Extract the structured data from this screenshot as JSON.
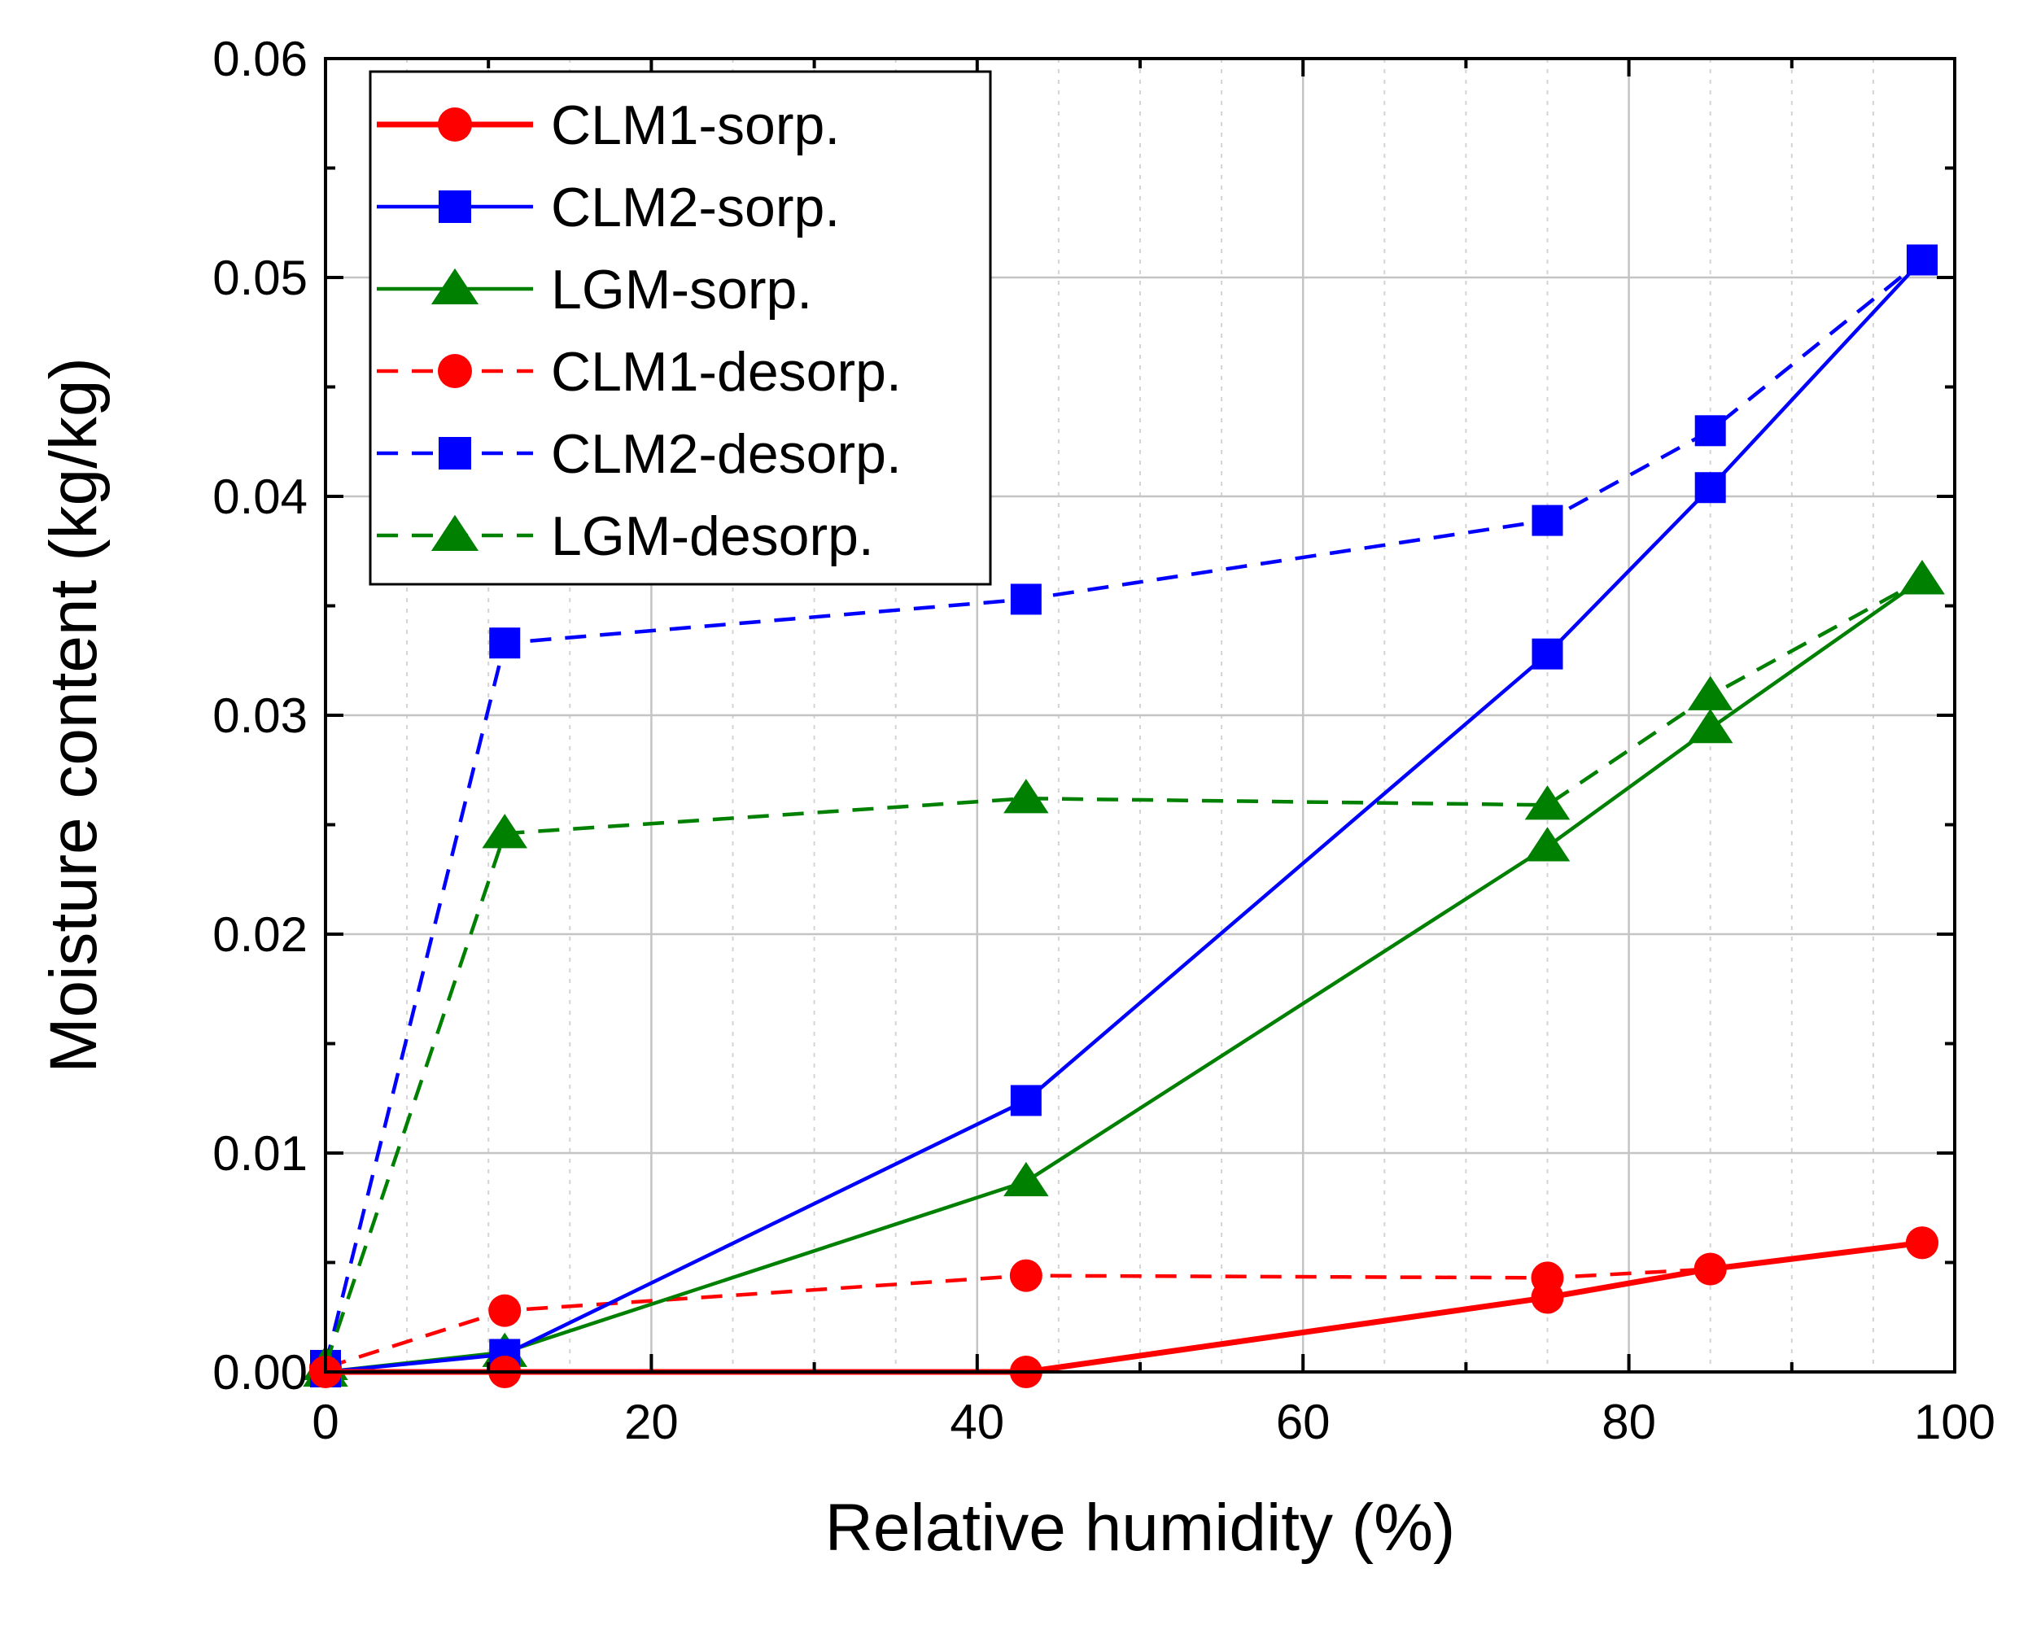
{
  "chart_data": {
    "type": "line",
    "title": "",
    "xlabel": "Relative humidity (%)",
    "ylabel": "Moisture content (kg/kg)",
    "xlim": [
      0,
      100
    ],
    "ylim": [
      0,
      0.06
    ],
    "xticks": [
      0,
      20,
      40,
      60,
      80,
      100
    ],
    "xtick_labels": [
      "0",
      "20",
      "40",
      "60",
      "80",
      "100"
    ],
    "yticks": [
      0,
      0.01,
      0.02,
      0.03,
      0.04,
      0.05,
      0.06
    ],
    "ytick_labels": [
      "0.00",
      "0.01",
      "0.02",
      "0.03",
      "0.04",
      "0.05",
      "0.06"
    ],
    "grid": true,
    "legend_position": "top-left",
    "series": [
      {
        "name": "CLM1-sorp.",
        "color": "#ff0000",
        "marker": "circle",
        "dash": "solid",
        "x": [
          0,
          11,
          43,
          75,
          85,
          98
        ],
        "y": [
          0,
          0,
          0,
          0.0034,
          0.0047,
          0.0059
        ]
      },
      {
        "name": "CLM2-sorp.",
        "color": "#0000ff",
        "marker": "square",
        "dash": "solid",
        "x": [
          0,
          11,
          43,
          75,
          85,
          98
        ],
        "y": [
          0,
          0.0008,
          0.0124,
          0.0328,
          0.0404,
          0.0508
        ]
      },
      {
        "name": "LGM-sorp.",
        "color": "#008000",
        "marker": "triangle",
        "dash": "solid",
        "x": [
          0,
          11,
          43,
          75,
          85,
          98
        ],
        "y": [
          0,
          0.0009,
          0.0087,
          0.024,
          0.0294,
          0.0362
        ]
      },
      {
        "name": "CLM1-desorp.",
        "color": "#ff0000",
        "marker": "circle",
        "dash": "dashed",
        "x": [
          0,
          11,
          43,
          75,
          85,
          98
        ],
        "y": [
          0.0002,
          0.0028,
          0.0044,
          0.0043,
          0.0047,
          0.0059
        ]
      },
      {
        "name": "CLM2-desorp.",
        "color": "#0000ff",
        "marker": "square",
        "dash": "dashed",
        "x": [
          0,
          11,
          43,
          75,
          85,
          98
        ],
        "y": [
          0.0003,
          0.0333,
          0.0353,
          0.0389,
          0.043,
          0.0508
        ]
      },
      {
        "name": "LGM-desorp.",
        "color": "#008000",
        "marker": "triangle",
        "dash": "dashed",
        "x": [
          0,
          11,
          43,
          75,
          85,
          98
        ],
        "y": [
          0.0003,
          0.0246,
          0.0262,
          0.0259,
          0.0309,
          0.0362
        ]
      }
    ]
  }
}
